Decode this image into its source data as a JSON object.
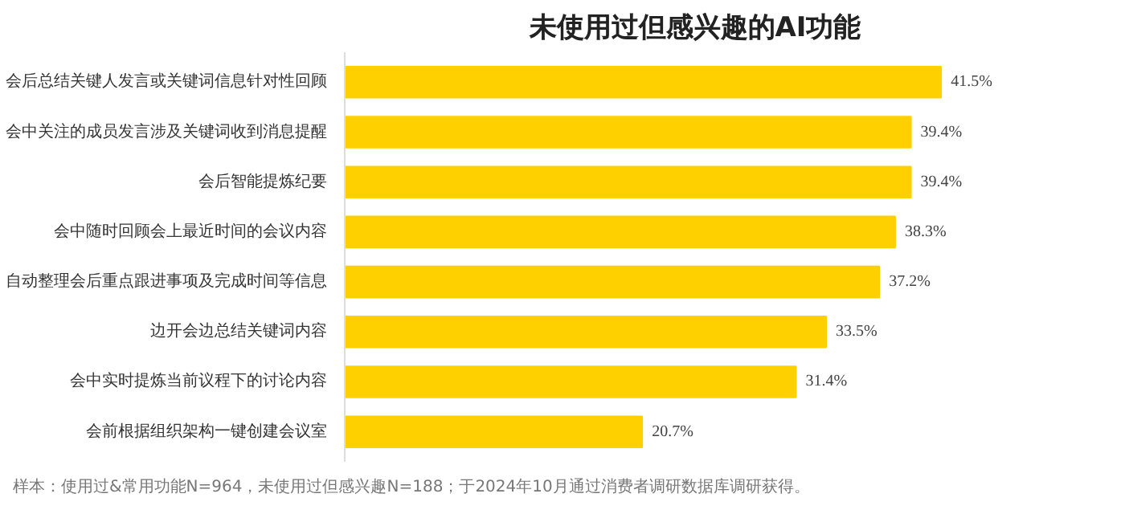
{
  "chart_data": {
    "type": "bar",
    "orientation": "horizontal",
    "title": "未使用过但感兴趣的AI功能",
    "categories": [
      "会后总结关键人发言或关键词信息针对性回顾",
      "会中关注的成员发言涉及关键词收到消息提醒",
      "会后智能提炼纪要",
      "会中随时回顾会上最近时间的会议内容",
      "自动整理会后重点跟进事项及完成时间等信息",
      "边开会边总结关键词内容",
      "会中实时提炼当前议程下的讨论内容",
      "会前根据组织架构一键创建会议室"
    ],
    "values": [
      41.5,
      39.4,
      39.4,
      38.3,
      37.2,
      33.5,
      31.4,
      20.7
    ],
    "value_labels": [
      "41.5%",
      "39.4%",
      "39.4%",
      "38.3%",
      "37.2%",
      "33.5%",
      "31.4%",
      "20.7%"
    ],
    "color": "#ffd000",
    "tick_labels": "y",
    "grid": false,
    "annotations": [
      "样本：使用过&常用功能N=964，未使用过但感兴趣N=188；于2024年10月通过消费者调研数据库调研获得。"
    ]
  }
}
